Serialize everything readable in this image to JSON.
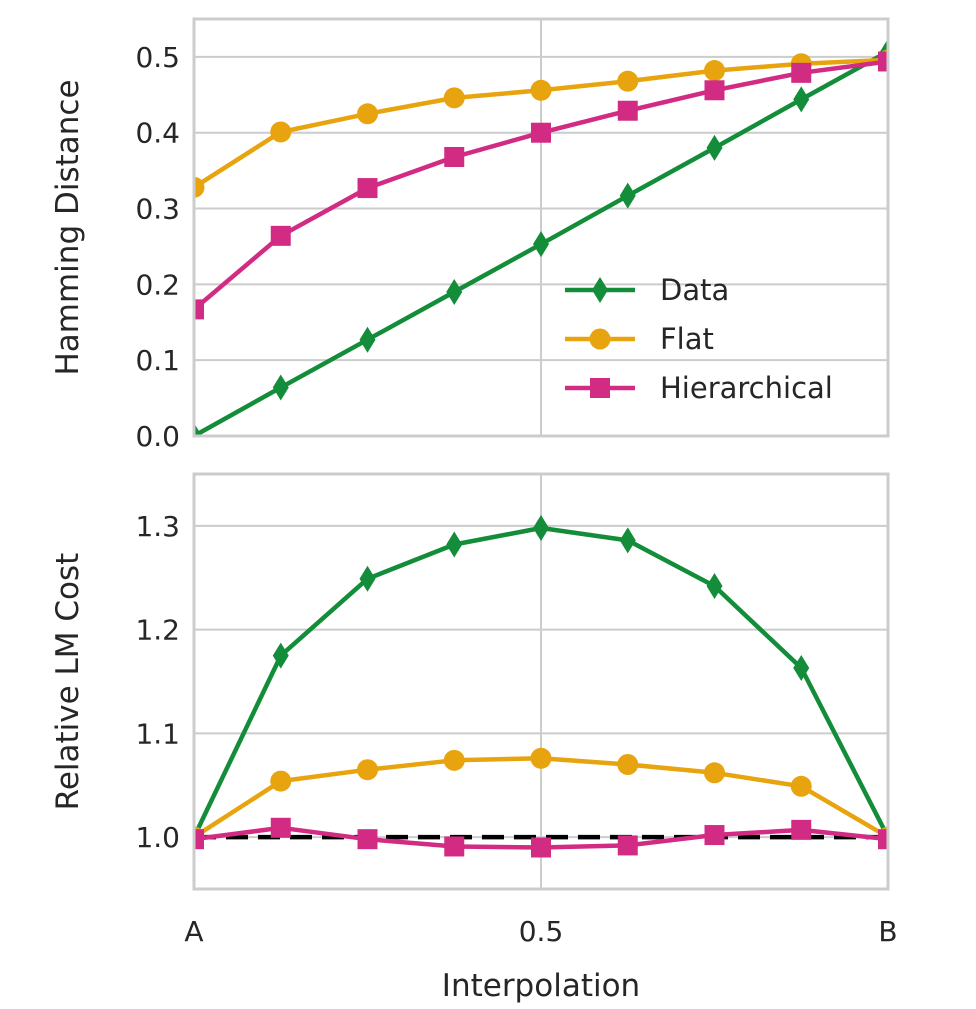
{
  "chart_data": [
    {
      "type": "line",
      "ylabel": "Hamming Distance",
      "xlabel": "",
      "xlim": [
        0,
        1
      ],
      "ylim": [
        0,
        0.55
      ],
      "yticks": [
        "0.0",
        "0.1",
        "0.2",
        "0.3",
        "0.4",
        "0.5"
      ],
      "grid": true,
      "legend": "lower-right",
      "x": [
        0,
        0.125,
        0.25,
        0.375,
        0.5,
        0.625,
        0.75,
        0.875,
        1.0
      ],
      "series": [
        {
          "name": "Data",
          "color": "#138d39",
          "marker": "diamond",
          "values": [
            0.0,
            0.064,
            0.127,
            0.19,
            0.253,
            0.317,
            0.38,
            0.444,
            0.507
          ]
        },
        {
          "name": "Flat",
          "color": "#e8a40e",
          "marker": "circle",
          "values": [
            0.328,
            0.401,
            0.425,
            0.446,
            0.456,
            0.468,
            0.482,
            0.491,
            0.496
          ]
        },
        {
          "name": "Hierarchical",
          "color": "#d22b83",
          "marker": "square",
          "values": [
            0.167,
            0.264,
            0.327,
            0.368,
            0.4,
            0.429,
            0.456,
            0.479,
            0.494
          ]
        }
      ]
    },
    {
      "type": "line",
      "ylabel": "Relative LM Cost",
      "xlabel": "Interpolation",
      "xlim": [
        0,
        1
      ],
      "ylim": [
        0.95,
        1.35
      ],
      "yticks": [
        "1.0",
        "1.1",
        "1.2",
        "1.3"
      ],
      "xticks": [
        {
          "value": 0,
          "label": "A"
        },
        {
          "value": 0.5,
          "label": "0.5"
        },
        {
          "value": 1,
          "label": "B"
        }
      ],
      "grid": true,
      "reference_line": {
        "y": 1.0,
        "style": "dashed",
        "color": "#000000"
      },
      "x": [
        0,
        0.125,
        0.25,
        0.375,
        0.5,
        0.625,
        0.75,
        0.875,
        1.0
      ],
      "series": [
        {
          "name": "Data",
          "color": "#138d39",
          "marker": "diamond",
          "values": [
            1.0,
            1.175,
            1.249,
            1.282,
            1.298,
            1.286,
            1.242,
            1.163,
            1.0
          ]
        },
        {
          "name": "Flat",
          "color": "#e8a40e",
          "marker": "circle",
          "values": [
            1.0,
            1.054,
            1.065,
            1.074,
            1.076,
            1.07,
            1.062,
            1.049,
            1.0
          ]
        },
        {
          "name": "Hierarchical",
          "color": "#d22b83",
          "marker": "square",
          "values": [
            0.998,
            1.009,
            0.998,
            0.991,
            0.99,
            0.992,
            1.002,
            1.007,
            0.998
          ]
        }
      ]
    }
  ]
}
